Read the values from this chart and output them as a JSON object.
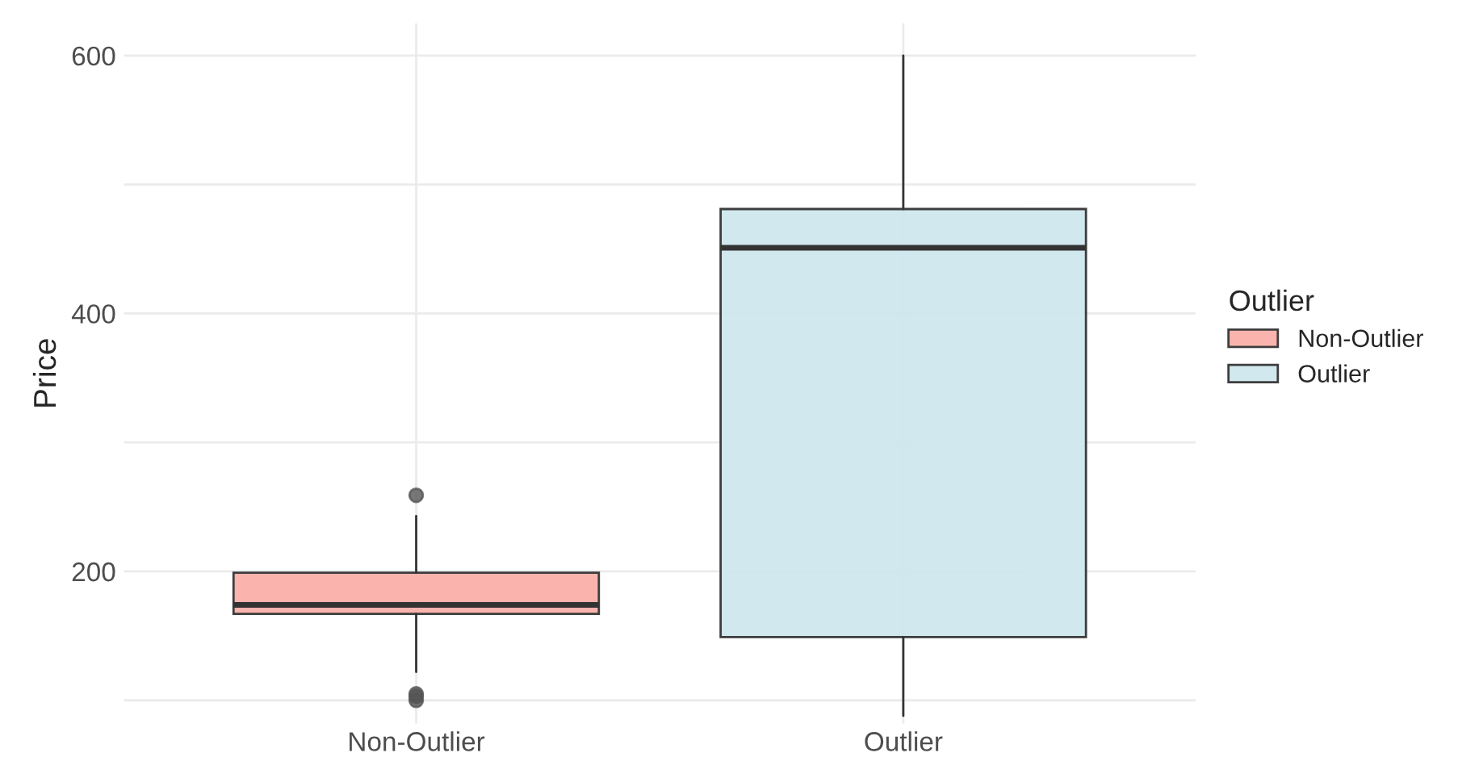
{
  "chart_data": {
    "type": "box",
    "ylabel": "Price",
    "legend_title": "Outlier",
    "legend": "right",
    "grid": true,
    "categories": [
      "Non-Outlier",
      "Outlier"
    ],
    "series": [
      {
        "name": "Non-Outlier",
        "color": "#fbb0a9",
        "boxes": [
          {
            "low": 122,
            "q1": 167,
            "median": 174,
            "q3": 199,
            "high": 243,
            "outliers": [
              259,
              105,
              103,
              100
            ]
          },
          null
        ]
      },
      {
        "name": "Outlier",
        "color": "#cfe7ee",
        "boxes": [
          null,
          {
            "low": 88,
            "q1": 149,
            "median": 451,
            "q3": 481,
            "high": 600
          }
        ]
      }
    ],
    "ylim": [
      82,
      625
    ],
    "yticks": [
      {
        "value": 100,
        "label": null
      },
      200,
      {
        "value": 300,
        "label": null
      },
      400,
      {
        "value": 500,
        "label": null
      },
      600
    ]
  }
}
